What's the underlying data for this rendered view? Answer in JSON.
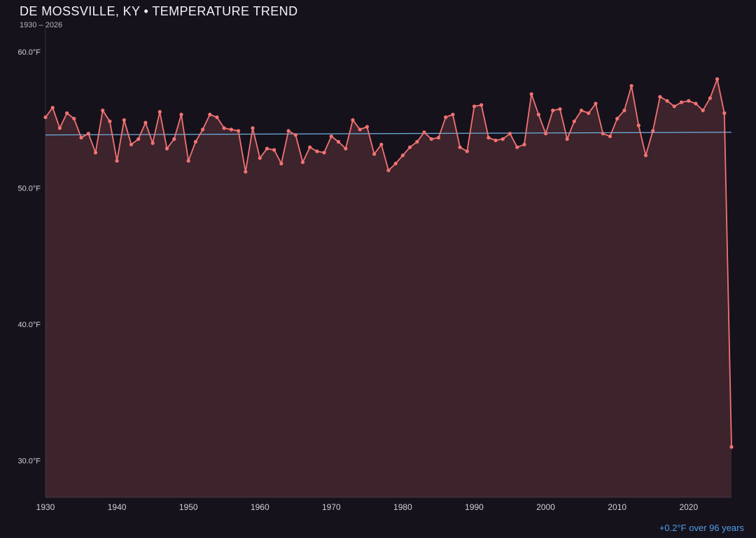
{
  "header": {
    "title": "DE MOSSVILLE, KY • TEMPERATURE TREND",
    "subtitle": "1930 – 2026"
  },
  "annotation": {
    "trend_label": "+0.2°F over 96 years"
  },
  "colors": {
    "background": "#16121c",
    "line": "#f17373",
    "fill": "#f17373",
    "fill_opacity": "0.18",
    "trend": "#6fb0e0",
    "annotation_text": "#4f9fe8",
    "axis": "#332f3d",
    "tick_text": "#cfcfd6",
    "title_text": "#f3f3f6",
    "subtitle_text": "#b6b3bf"
  },
  "chart_data": {
    "type": "line",
    "title": "DE MOSSVILLE, KY • TEMPERATURE TREND",
    "subtitle": "1930 – 2026",
    "xlabel": "",
    "ylabel": "",
    "x_start": 1930,
    "x_end": 2026,
    "ylim": [
      27,
      61
    ],
    "grid": false,
    "legend": "none",
    "units": "°F",
    "y_ticks": [
      {
        "label": "60.0°F",
        "value": 60
      },
      {
        "label": "50.0°F",
        "value": 50
      },
      {
        "label": "40.0°F",
        "value": 40
      },
      {
        "label": "30.0°F",
        "value": 30
      }
    ],
    "x_ticks": [
      1930,
      1940,
      1950,
      1960,
      1970,
      1980,
      1990,
      2000,
      2010,
      2020
    ],
    "years": [
      1930,
      1931,
      1932,
      1933,
      1934,
      1935,
      1936,
      1937,
      1938,
      1939,
      1940,
      1941,
      1942,
      1943,
      1944,
      1945,
      1946,
      1947,
      1948,
      1949,
      1950,
      1951,
      1952,
      1953,
      1954,
      1955,
      1956,
      1957,
      1958,
      1959,
      1960,
      1961,
      1962,
      1963,
      1964,
      1965,
      1966,
      1967,
      1968,
      1969,
      1970,
      1971,
      1972,
      1973,
      1974,
      1975,
      1976,
      1977,
      1978,
      1979,
      1980,
      1981,
      1982,
      1983,
      1984,
      1985,
      1986,
      1987,
      1988,
      1989,
      1990,
      1991,
      1992,
      1993,
      1994,
      1995,
      1996,
      1997,
      1998,
      1999,
      2000,
      2001,
      2002,
      2003,
      2004,
      2005,
      2006,
      2007,
      2008,
      2009,
      2010,
      2011,
      2012,
      2013,
      2014,
      2015,
      2016,
      2017,
      2018,
      2019,
      2020,
      2021,
      2022,
      2023,
      2024,
      2025,
      2026
    ],
    "values": [
      55.2,
      55.9,
      54.4,
      55.5,
      55.1,
      53.7,
      54.0,
      52.6,
      55.7,
      54.9,
      52.0,
      55.0,
      53.2,
      53.6,
      54.8,
      53.3,
      55.6,
      52.9,
      53.6,
      55.4,
      52.0,
      53.4,
      54.3,
      55.4,
      55.2,
      54.4,
      54.3,
      54.2,
      51.2,
      54.4,
      52.2,
      52.9,
      52.8,
      51.8,
      54.2,
      53.9,
      51.9,
      53.0,
      52.7,
      52.6,
      53.8,
      53.4,
      52.9,
      55.0,
      54.3,
      54.5,
      52.5,
      53.2,
      51.3,
      51.8,
      52.4,
      53.0,
      53.4,
      54.1,
      53.6,
      53.7,
      55.2,
      55.4,
      53.0,
      52.7,
      56.0,
      56.1,
      53.7,
      53.5,
      53.6,
      54.0,
      53.0,
      53.2,
      56.9,
      55.4,
      54.0,
      55.7,
      55.8,
      53.6,
      54.9,
      55.7,
      55.5,
      56.2,
      54.0,
      53.8,
      55.1,
      55.7,
      57.5,
      54.6,
      52.4,
      54.2,
      56.7,
      56.4,
      56.0,
      56.3,
      56.4,
      56.2,
      55.7,
      56.6,
      58.0,
      55.5,
      31.0
    ],
    "trend": {
      "start_year": 1930,
      "end_year": 2026,
      "start_value": 53.9,
      "end_value": 54.1,
      "change": "+0.2°F",
      "span_years": 96,
      "label": "+0.2°F over 96 years"
    }
  }
}
